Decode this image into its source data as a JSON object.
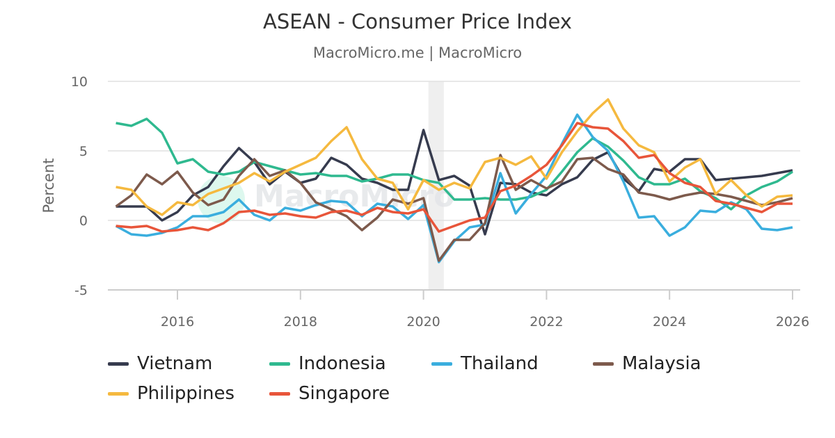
{
  "chart_data": {
    "type": "line",
    "title": "ASEAN - Consumer Price Index",
    "subtitle": "MacroMicro.me | MacroMicro",
    "ylabel": "Percent",
    "xlabel": "",
    "ylim": [
      -5,
      10
    ],
    "xlim": [
      2015,
      2026.05
    ],
    "yticks": [
      -5,
      0,
      5,
      10
    ],
    "xticks": [
      2016,
      2018,
      2020,
      2022,
      2024,
      2026
    ],
    "grid": true,
    "legend": "bottom",
    "shaded_x": [
      2020.08,
      2020.33
    ],
    "watermark": "MacroMicro",
    "x": [
      2015,
      2015.25,
      2015.5,
      2015.75,
      2016,
      2016.25,
      2016.5,
      2016.75,
      2017,
      2017.25,
      2017.5,
      2017.75,
      2018,
      2018.25,
      2018.5,
      2018.75,
      2019,
      2019.25,
      2019.5,
      2019.75,
      2020,
      2020.25,
      2020.5,
      2020.75,
      2021,
      2021.25,
      2021.5,
      2021.75,
      2022,
      2022.25,
      2022.5,
      2022.75,
      2023,
      2023.25,
      2023.5,
      2023.75,
      2024,
      2024.25,
      2024.5,
      2024.75,
      2025,
      2025.25,
      2025.5,
      2025.75,
      2026
    ],
    "series": [
      {
        "name": "Vietnam",
        "color": "#363b4e",
        "values": [
          1.0,
          1.0,
          1.0,
          0.0,
          0.6,
          1.8,
          2.4,
          3.9,
          5.2,
          4.2,
          2.6,
          3.5,
          2.7,
          3.0,
          4.5,
          4.0,
          3.0,
          2.7,
          2.2,
          2.2,
          6.5,
          2.9,
          3.2,
          2.5,
          -1.0,
          2.7,
          2.6,
          2.0,
          1.8,
          2.6,
          3.1,
          4.35,
          4.9,
          3.0,
          2.1,
          3.7,
          3.5,
          4.4,
          4.4,
          2.9,
          3.0,
          3.1,
          3.2,
          3.4,
          3.6
        ]
      },
      {
        "name": "Indonesia",
        "color": "#2fb98f",
        "values": [
          7.0,
          6.8,
          7.3,
          6.3,
          4.1,
          4.4,
          3.5,
          3.3,
          3.5,
          4.2,
          3.9,
          3.6,
          3.3,
          3.4,
          3.2,
          3.2,
          2.8,
          3.0,
          3.3,
          3.3,
          2.9,
          2.7,
          1.5,
          1.5,
          1.6,
          1.5,
          1.5,
          1.7,
          2.2,
          3.5,
          4.9,
          5.9,
          5.3,
          4.3,
          3.1,
          2.6,
          2.6,
          3.0,
          2.1,
          1.6,
          0.8,
          1.8,
          2.4,
          2.8,
          3.5
        ]
      },
      {
        "name": "Thailand",
        "color": "#3aaede",
        "values": [
          -0.4,
          -1.0,
          -1.1,
          -0.9,
          -0.5,
          0.3,
          0.3,
          0.6,
          1.5,
          0.4,
          0.0,
          0.9,
          0.7,
          1.1,
          1.4,
          1.3,
          0.3,
          1.2,
          1.0,
          0.1,
          1.1,
          -3.0,
          -1.5,
          -0.5,
          -0.3,
          3.4,
          0.5,
          1.9,
          3.2,
          5.5,
          7.6,
          6.0,
          5.0,
          2.8,
          0.2,
          0.3,
          -1.1,
          -0.5,
          0.7,
          0.6,
          1.3,
          0.8,
          -0.6,
          -0.7,
          -0.5
        ]
      },
      {
        "name": "Malaysia",
        "color": "#7d5a4c",
        "values": [
          1.0,
          1.8,
          3.3,
          2.6,
          3.5,
          2.0,
          1.1,
          1.5,
          3.2,
          4.4,
          3.2,
          3.6,
          2.7,
          1.3,
          0.8,
          0.3,
          -0.7,
          0.2,
          1.5,
          1.2,
          1.6,
          -2.9,
          -1.4,
          -1.4,
          -0.2,
          4.7,
          2.2,
          2.9,
          2.3,
          2.8,
          4.4,
          4.5,
          3.7,
          3.3,
          2.0,
          1.8,
          1.5,
          1.8,
          2.0,
          1.9,
          1.7,
          1.4,
          1.1,
          1.3,
          1.6
        ]
      },
      {
        "name": "Philippines",
        "color": "#f5b93f",
        "values": [
          2.4,
          2.2,
          1.0,
          0.4,
          1.3,
          1.1,
          1.9,
          2.3,
          2.7,
          3.4,
          2.8,
          3.5,
          4.0,
          4.5,
          5.7,
          6.7,
          4.4,
          3.0,
          2.7,
          0.8,
          2.9,
          2.2,
          2.7,
          2.3,
          4.2,
          4.5,
          4.0,
          4.6,
          3.0,
          4.9,
          6.4,
          7.7,
          8.7,
          6.6,
          5.4,
          4.9,
          2.8,
          3.8,
          4.4,
          1.9,
          2.9,
          1.8,
          1.0,
          1.7,
          1.8
        ]
      },
      {
        "name": "Singapore",
        "color": "#e8553a",
        "values": [
          -0.4,
          -0.5,
          -0.4,
          -0.8,
          -0.7,
          -0.5,
          -0.7,
          -0.2,
          0.6,
          0.7,
          0.4,
          0.5,
          0.3,
          0.2,
          0.6,
          0.7,
          0.4,
          0.9,
          0.6,
          0.5,
          0.8,
          -0.8,
          -0.4,
          0.0,
          0.2,
          2.1,
          2.5,
          3.2,
          4.0,
          5.4,
          7.0,
          6.7,
          6.6,
          5.7,
          4.5,
          4.7,
          3.4,
          2.7,
          2.4,
          1.4,
          1.2,
          0.9,
          0.6,
          1.2,
          1.2
        ]
      }
    ]
  }
}
